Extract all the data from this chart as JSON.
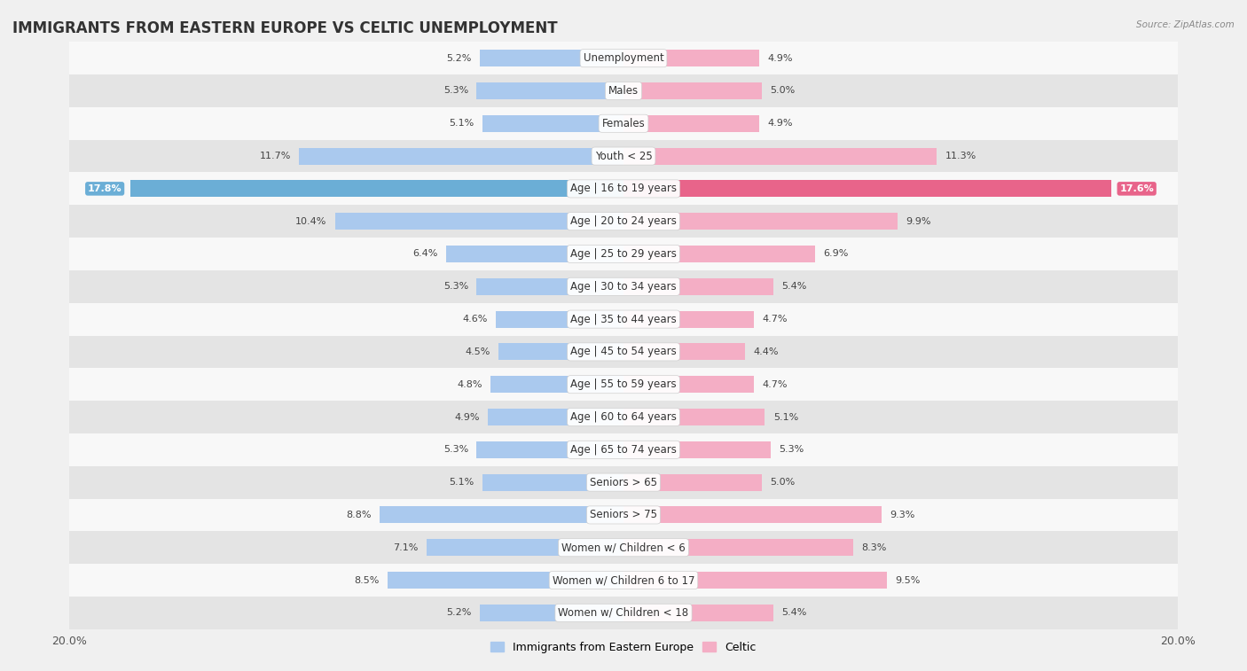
{
  "title": "IMMIGRANTS FROM EASTERN EUROPE VS CELTIC UNEMPLOYMENT",
  "source": "Source: ZipAtlas.com",
  "categories": [
    "Unemployment",
    "Males",
    "Females",
    "Youth < 25",
    "Age | 16 to 19 years",
    "Age | 20 to 24 years",
    "Age | 25 to 29 years",
    "Age | 30 to 34 years",
    "Age | 35 to 44 years",
    "Age | 45 to 54 years",
    "Age | 55 to 59 years",
    "Age | 60 to 64 years",
    "Age | 65 to 74 years",
    "Seniors > 65",
    "Seniors > 75",
    "Women w/ Children < 6",
    "Women w/ Children 6 to 17",
    "Women w/ Children < 18"
  ],
  "left_values": [
    5.2,
    5.3,
    5.1,
    11.7,
    17.8,
    10.4,
    6.4,
    5.3,
    4.6,
    4.5,
    4.8,
    4.9,
    5.3,
    5.1,
    8.8,
    7.1,
    8.5,
    5.2
  ],
  "right_values": [
    4.9,
    5.0,
    4.9,
    11.3,
    17.6,
    9.9,
    6.9,
    5.4,
    4.7,
    4.4,
    4.7,
    5.1,
    5.3,
    5.0,
    9.3,
    8.3,
    9.5,
    5.4
  ],
  "left_color": "#aac9ee",
  "right_color": "#f4aec5",
  "highlight_left_color": "#6baed6",
  "highlight_right_color": "#e8648a",
  "max_val": 20.0,
  "bg_color": "#f0f0f0",
  "row_alt_color": "#e4e4e4",
  "row_base_color": "#f8f8f8",
  "title_fontsize": 12,
  "label_fontsize": 8.5,
  "value_fontsize": 8,
  "legend_label_left": "Immigrants from Eastern Europe",
  "legend_label_right": "Celtic"
}
